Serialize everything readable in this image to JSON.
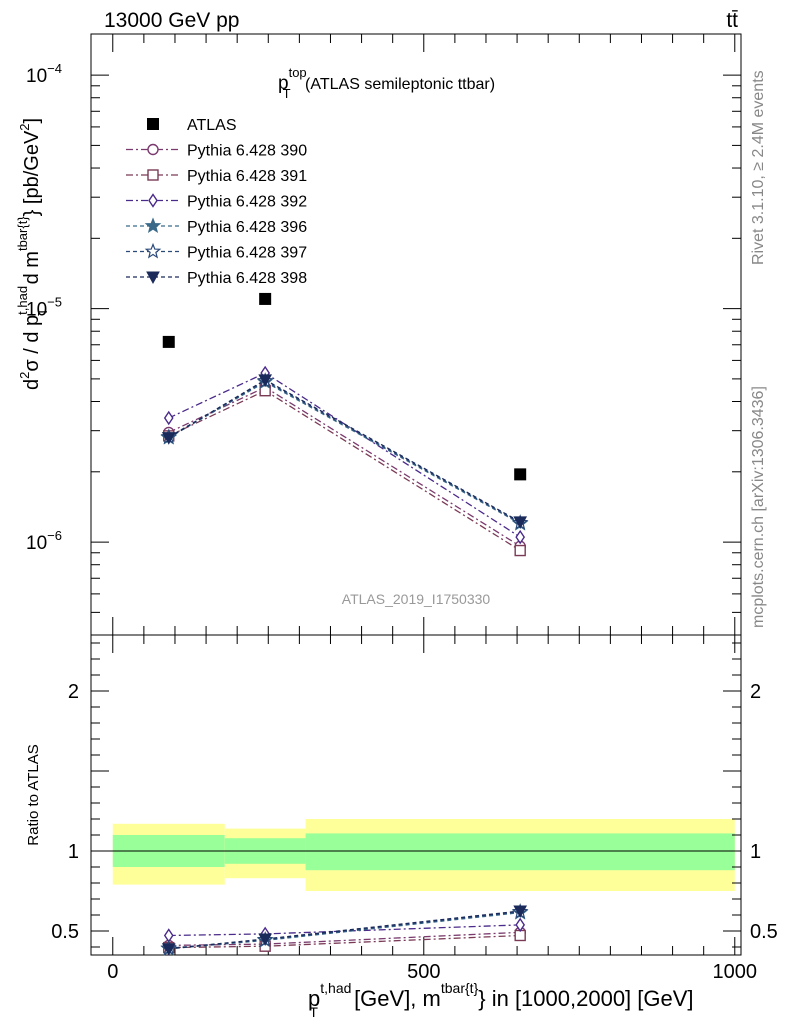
{
  "header": {
    "left": "13000 GeV pp",
    "right": "tt̄"
  },
  "side_labels": {
    "rivet": "Rivet 3.1.10, ≥ 2.4M events",
    "mcplots": "mcplots.cern.ch [arXiv:1306.3436]"
  },
  "chart_data": {
    "type": "line",
    "title": {
      "main": "p",
      "sup": "top",
      "sub": "T",
      "rest": " (ATLAS semileptonic ttbar)"
    },
    "watermark": "ATLAS_2019_I1750330",
    "x": [
      90,
      245,
      655
    ],
    "x_bins": [
      [
        0,
        180
      ],
      [
        180,
        310
      ],
      [
        310,
        1000
      ]
    ],
    "xlim": [
      -35,
      1010
    ],
    "xticks": [
      {
        "v": 0,
        "label": "0"
      },
      {
        "v": 500,
        "label": "500"
      },
      {
        "v": 1000,
        "label": "1000"
      }
    ],
    "xlabel": {
      "a": "p",
      "a_sup": "t,had",
      "a_sub": "T",
      "b": " [GeV], m",
      "b_sup": "tbar{t}",
      "c": "} in [1000,2000] [GeV]"
    },
    "main": {
      "scale": "log",
      "ylim": [
        4e-07,
        0.00015
      ],
      "yticks": [
        {
          "v": 1e-06,
          "label": "10",
          "exp": "−6"
        },
        {
          "v": 1e-05,
          "label": "10",
          "exp": "−5"
        },
        {
          "v": 0.0001,
          "label": "10",
          "exp": "−4"
        }
      ],
      "ylabel": "d²σ / d p_T^{t,had} d m^{tbar{t}} [pb/GeV²]",
      "ylabel_parts": {
        "p1": "d",
        "p1_sup": "2",
        "p2": "σ / d p",
        "p2_sup": "t,had",
        "p2_sub": "T",
        "p3": " d m",
        "p3_sup": "tbar{t}",
        "p4": "} [pb/GeV",
        "p4_sup": "2",
        "p5": "]"
      },
      "data": {
        "name": "ATLAS",
        "values": [
          7.2e-06,
          1.1e-05,
          1.95e-06
        ],
        "color": "#000000"
      },
      "legend_placement": "top-left"
    },
    "ratio": {
      "ylim": [
        0.35,
        2.35
      ],
      "yticks": [
        {
          "v": 0.5,
          "label": "0.5"
        },
        {
          "v": 1,
          "label": "1"
        },
        {
          "v": 2,
          "label": "2"
        }
      ],
      "ylabel": "Ratio to ATLAS",
      "band_inner": [
        [
          0.9,
          1.1
        ],
        [
          0.92,
          1.08
        ],
        [
          0.88,
          1.11
        ]
      ],
      "band_outer": [
        [
          0.79,
          1.17
        ],
        [
          0.83,
          1.14
        ],
        [
          0.75,
          1.2
        ]
      ],
      "band_inner_color": "#99ff99",
      "band_outer_color": "#ffff99"
    },
    "series": [
      {
        "name": "Pythia 6.428 390",
        "color": "#7a3a6e",
        "marker": "circle-open",
        "dash": "7,3,2,3",
        "values": [
          2.95e-06,
          4.6e-06,
          9.6e-07
        ],
        "ratio": [
          0.41,
          0.418,
          0.492
        ]
      },
      {
        "name": "Pythia 6.428 391",
        "color": "#7a3a56",
        "marker": "square-open",
        "dash": "7,3,2,3",
        "values": [
          2.85e-06,
          4.45e-06,
          9.2e-07
        ],
        "ratio": [
          0.396,
          0.405,
          0.472
        ]
      },
      {
        "name": "Pythia 6.428 392",
        "color": "#4a2a8a",
        "marker": "diamond-open",
        "dash": "7,3,2,3",
        "values": [
          3.4e-06,
          5.3e-06,
          1.05e-06
        ],
        "ratio": [
          0.472,
          0.482,
          0.538
        ]
      },
      {
        "name": "Pythia 6.428 396",
        "color": "#3a6a8a",
        "marker": "star-filled",
        "dash": "4,3",
        "values": [
          2.8e-06,
          4.85e-06,
          1.2e-06
        ],
        "ratio": [
          0.389,
          0.441,
          0.615
        ]
      },
      {
        "name": "Pythia 6.428 397",
        "color": "#2a4a7a",
        "marker": "star-open",
        "dash": "4,3",
        "values": [
          2.82e-06,
          4.9e-06,
          1.21e-06
        ],
        "ratio": [
          0.392,
          0.445,
          0.62
        ]
      },
      {
        "name": "Pythia 6.428 398",
        "color": "#1a2a5a",
        "marker": "triangle-down-filled",
        "dash": "4,3",
        "values": [
          2.8e-06,
          4.95e-06,
          1.22e-06
        ],
        "ratio": [
          0.389,
          0.45,
          0.625
        ]
      }
    ]
  }
}
